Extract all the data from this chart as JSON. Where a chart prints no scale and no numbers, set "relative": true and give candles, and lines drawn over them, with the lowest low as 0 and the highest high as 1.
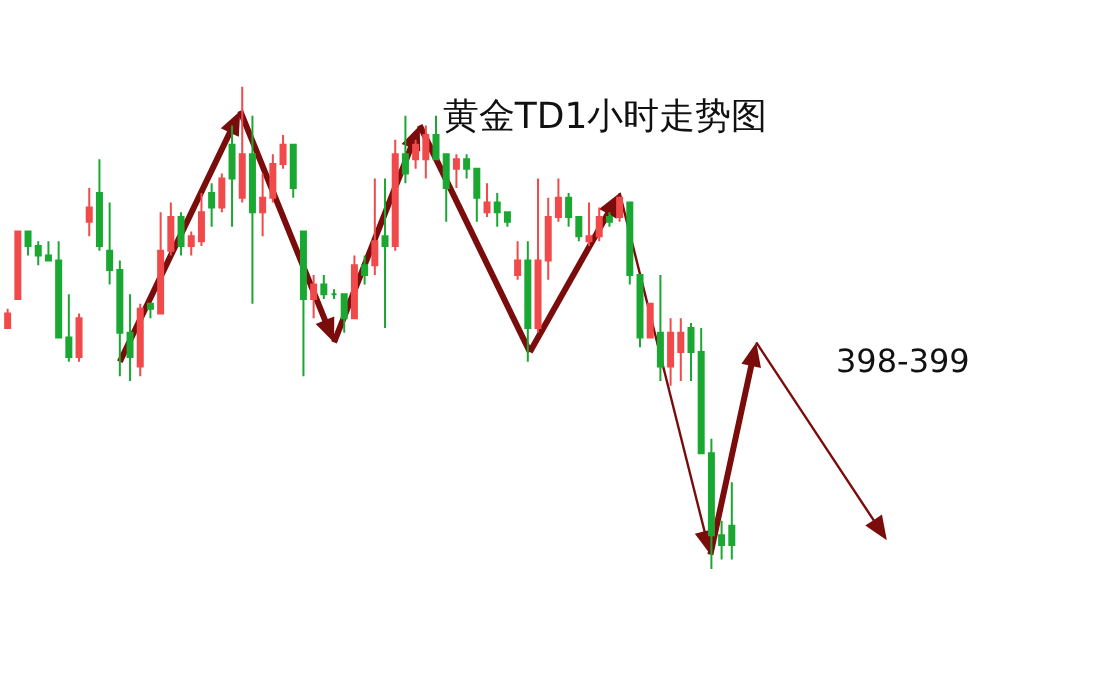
{
  "chart_data": {
    "type": "candlestick",
    "title": "黄金TD1小时走势图",
    "relative": true,
    "tick_labels": false,
    "legend": false,
    "categories": [
      null,
      null,
      null,
      null,
      null,
      null,
      null,
      null,
      null,
      null,
      null,
      null,
      null,
      null,
      null,
      null,
      null,
      null,
      null,
      null,
      null,
      null,
      null,
      null,
      null,
      null,
      null,
      null,
      null,
      null,
      null,
      null,
      null,
      null,
      null,
      null,
      null,
      null,
      null,
      null,
      null,
      null,
      null,
      null,
      null,
      null,
      null,
      null,
      null,
      null,
      null,
      null,
      null,
      null,
      null,
      null,
      null,
      null,
      null,
      null,
      null,
      null,
      null,
      null,
      null,
      null,
      null,
      null,
      null,
      null,
      null,
      null
    ],
    "ohlc": [
      [
        0.5,
        0.54,
        0.5,
        0.53
      ],
      [
        0.56,
        0.7,
        0.56,
        0.7
      ],
      [
        0.7,
        0.7,
        0.65,
        0.67
      ],
      [
        0.67,
        0.68,
        0.63,
        0.65
      ],
      [
        0.65,
        0.68,
        0.64,
        0.64
      ],
      [
        0.64,
        0.68,
        0.48,
        0.48
      ],
      [
        0.48,
        0.57,
        0.43,
        0.44
      ],
      [
        0.44,
        0.53,
        0.43,
        0.52
      ],
      [
        0.72,
        0.79,
        0.69,
        0.75
      ],
      [
        0.78,
        0.85,
        0.66,
        0.67
      ],
      [
        0.66,
        0.76,
        0.59,
        0.62
      ],
      [
        0.62,
        0.64,
        0.4,
        0.49
      ],
      [
        0.49,
        0.57,
        0.39,
        0.44
      ],
      [
        0.42,
        0.55,
        0.4,
        0.54
      ],
      [
        0.55,
        0.55,
        0.52,
        0.54
      ],
      [
        0.53,
        0.74,
        0.53,
        0.66
      ],
      [
        0.66,
        0.76,
        0.65,
        0.73
      ],
      [
        0.73,
        0.74,
        0.65,
        0.67
      ],
      [
        0.67,
        0.7,
        0.65,
        0.69
      ],
      [
        0.68,
        0.78,
        0.67,
        0.74
      ],
      [
        0.78,
        0.8,
        0.71,
        0.75
      ],
      [
        0.75,
        0.82,
        0.74,
        0.81
      ],
      [
        0.88,
        0.92,
        0.71,
        0.81
      ],
      [
        0.77,
        1.0,
        0.76,
        0.86
      ],
      [
        0.86,
        0.94,
        0.55,
        0.74
      ],
      [
        0.74,
        0.82,
        0.69,
        0.77
      ],
      [
        0.77,
        0.86,
        0.76,
        0.84
      ],
      [
        0.84,
        0.9,
        0.83,
        0.88
      ],
      [
        0.88,
        0.88,
        0.77,
        0.79
      ],
      [
        0.7,
        0.7,
        0.4,
        0.56
      ],
      [
        0.56,
        0.61,
        0.52,
        0.59
      ],
      [
        0.59,
        0.61,
        0.56,
        0.57
      ],
      [
        0.57,
        0.58,
        0.56,
        0.57
      ],
      [
        0.57,
        0.57,
        0.49,
        0.52
      ],
      [
        0.52,
        0.65,
        0.52,
        0.63
      ],
      [
        0.63,
        0.65,
        0.59,
        0.61
      ],
      [
        0.63,
        0.81,
        0.61,
        0.68
      ],
      [
        0.69,
        0.81,
        0.5,
        0.67
      ],
      [
        0.67,
        0.89,
        0.66,
        0.86
      ],
      [
        0.86,
        0.94,
        0.8,
        0.82
      ],
      [
        0.85,
        0.89,
        0.83,
        0.88
      ],
      [
        0.85,
        0.92,
        0.81,
        0.9
      ],
      [
        0.9,
        0.94,
        0.85,
        0.85
      ],
      [
        0.86,
        0.86,
        0.72,
        0.79
      ],
      [
        0.83,
        0.86,
        0.79,
        0.85
      ],
      [
        0.85,
        0.86,
        0.81,
        0.83
      ],
      [
        0.83,
        0.83,
        0.72,
        0.77
      ],
      [
        0.74,
        0.8,
        0.73,
        0.76
      ],
      [
        0.76,
        0.78,
        0.71,
        0.74
      ],
      [
        0.74,
        0.74,
        0.71,
        0.72
      ],
      [
        0.61,
        0.68,
        0.6,
        0.64
      ],
      [
        0.64,
        0.68,
        0.43,
        0.5
      ],
      [
        0.5,
        0.81,
        0.49,
        0.64
      ],
      [
        0.64,
        0.77,
        0.6,
        0.73
      ],
      [
        0.73,
        0.81,
        0.72,
        0.77
      ],
      [
        0.77,
        0.78,
        0.71,
        0.73
      ],
      [
        0.73,
        0.73,
        0.68,
        0.69
      ],
      [
        0.68,
        0.76,
        0.67,
        0.69
      ],
      [
        0.69,
        0.75,
        0.68,
        0.73
      ],
      [
        0.73,
        0.74,
        0.71,
        0.72
      ],
      [
        0.73,
        0.77,
        0.72,
        0.77
      ],
      [
        0.76,
        0.76,
        0.59,
        0.61
      ],
      [
        0.61,
        0.61,
        0.46,
        0.48
      ],
      [
        0.48,
        0.55,
        0.48,
        0.55
      ],
      [
        0.49,
        0.61,
        0.39,
        0.42
      ],
      [
        0.42,
        0.52,
        0.38,
        0.49
      ],
      [
        0.45,
        0.52,
        0.39,
        0.49
      ],
      [
        0.5,
        0.51,
        0.39,
        0.45
      ],
      [
        0.45,
        0.5,
        0.24,
        0.24
      ],
      [
        0.24,
        0.27,
        0.0,
        0.07
      ],
      [
        0.07,
        0.1,
        0.02,
        0.05
      ],
      [
        0.09,
        0.18,
        0.02,
        0.05
      ]
    ],
    "annotations": [
      "398-399"
    ]
  }
}
